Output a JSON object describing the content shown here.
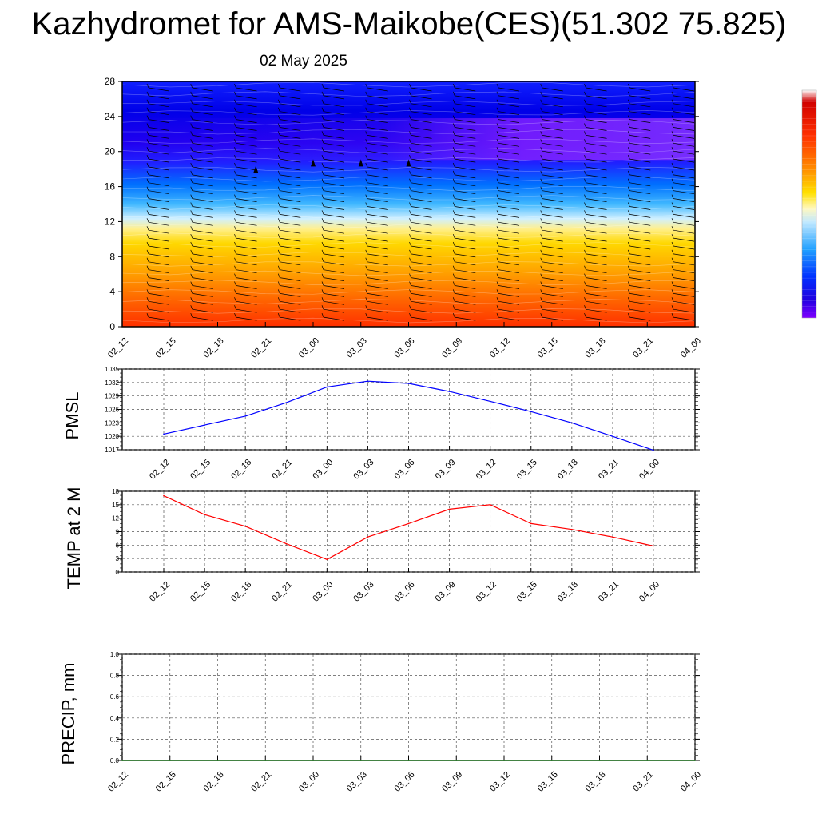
{
  "header": {
    "title": "Kazhydromet for AMS-Maikobe(CES)(51.302 75.825)",
    "date": "02 May 2025"
  },
  "colors": {
    "pmsl_line": "#0000ff",
    "temp_line": "#ff0000",
    "precip_line": "#006400",
    "grid": "#555555"
  },
  "chart_data": [
    {
      "type": "heatmap",
      "name": "cross-section",
      "xticks": [
        "02_12",
        "02_15",
        "02_18",
        "02_21",
        "03_00",
        "03_03",
        "03_06",
        "03_09",
        "03_12",
        "03_15",
        "03_18",
        "03_21",
        "04_00"
      ],
      "yticks": [
        "0",
        "4",
        "8",
        "12",
        "16",
        "20",
        "24",
        "28"
      ],
      "ylim": [
        0,
        28
      ],
      "freezing_level_markers_x": [
        "02_21",
        "03_00",
        "03_03",
        "03_06"
      ],
      "freezing_level_y": 18.3,
      "colorbar": [
        "#8000ff",
        "#4000ff",
        "#0000ff",
        "#0060ff",
        "#00a0ff",
        "#60d0ff",
        "#d8f0ff",
        "#fff8b0",
        "#ffe000",
        "#ffb000",
        "#ff8000",
        "#ff4000",
        "#ff0000",
        "#d00000",
        "#ffffff"
      ]
    },
    {
      "type": "line",
      "ylabel": "PMSL",
      "x": [
        "02_12",
        "02_15",
        "02_18",
        "02_21",
        "03_00",
        "03_03",
        "03_06",
        "03_09",
        "03_12",
        "03_15",
        "03_18",
        "03_21",
        "04_00"
      ],
      "values": [
        1020.5,
        1022.5,
        1024.5,
        1027.5,
        1031.0,
        1032.3,
        1031.8,
        1030.0,
        1027.8,
        1025.5,
        1023.0,
        1020.0,
        1016.9
      ],
      "yticks": [
        "1017",
        "1020",
        "1023",
        "1026",
        "1029",
        "1032",
        "1035"
      ],
      "ylim": [
        1017,
        1035
      ]
    },
    {
      "type": "line",
      "ylabel": "TEMP at 2 M",
      "x": [
        "02_12",
        "02_15",
        "02_18",
        "02_21",
        "03_00",
        "03_03",
        "03_06",
        "03_09",
        "03_12",
        "03_15",
        "03_18",
        "03_21",
        "04_00"
      ],
      "values": [
        17.0,
        12.8,
        10.2,
        6.3,
        2.8,
        7.8,
        10.8,
        14.0,
        15.0,
        10.8,
        9.5,
        7.8,
        5.8
      ],
      "yticks": [
        "0",
        "3",
        "6",
        "9",
        "12",
        "15",
        "18"
      ],
      "ylim": [
        0,
        18
      ]
    },
    {
      "type": "line",
      "ylabel": "PRECIP, mm",
      "x": [
        "02_12",
        "02_15",
        "02_18",
        "02_21",
        "03_00",
        "03_03",
        "03_06",
        "03_09",
        "03_12",
        "03_15",
        "03_18",
        "03_21",
        "04_00"
      ],
      "values": [
        0,
        0,
        0,
        0,
        0,
        0,
        0,
        0,
        0,
        0,
        0,
        0,
        0
      ],
      "yticks": [
        "0.0",
        "0.2",
        "0.4",
        "0.6",
        "0.8",
        "1.0"
      ],
      "ylim": [
        0,
        1
      ]
    }
  ]
}
